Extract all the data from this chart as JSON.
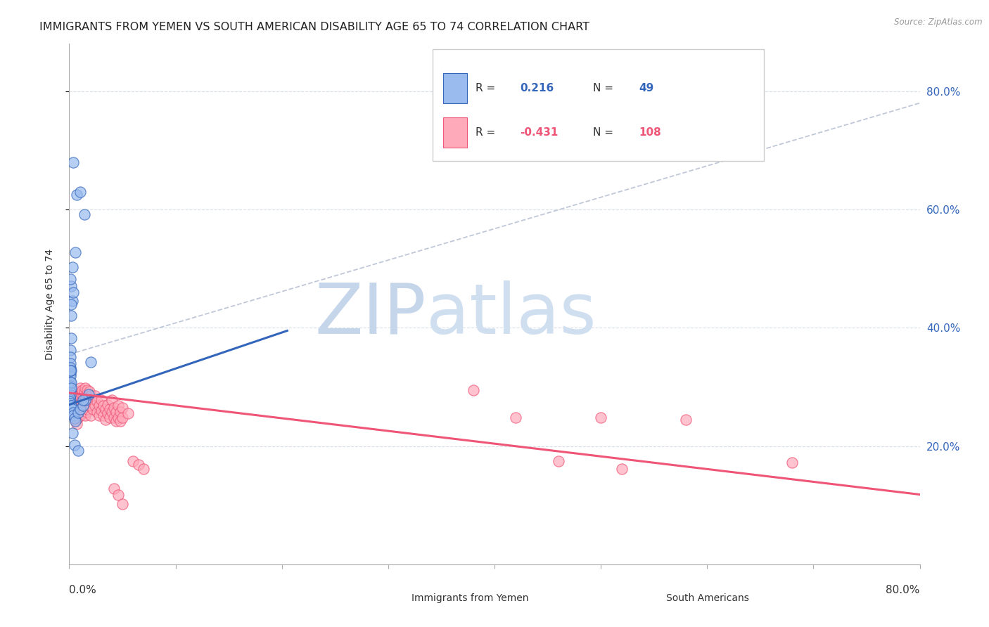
{
  "title": "IMMIGRANTS FROM YEMEN VS SOUTH AMERICAN DISABILITY AGE 65 TO 74 CORRELATION CHART",
  "source": "Source: ZipAtlas.com",
  "ylabel": "Disability Age 65 to 74",
  "ytick_values": [
    0.2,
    0.4,
    0.6,
    0.8
  ],
  "xlim": [
    0.0,
    0.8
  ],
  "ylim": [
    0.0,
    0.88
  ],
  "watermark_zip": "ZIP",
  "watermark_atlas": "atlas",
  "legend_label1": "Immigrants from Yemen",
  "legend_label2": "South Americans",
  "blue_scatter": [
    [
      0.004,
      0.68
    ],
    [
      0.007,
      0.625
    ],
    [
      0.01,
      0.63
    ],
    [
      0.014,
      0.592
    ],
    [
      0.006,
      0.528
    ],
    [
      0.002,
      0.47
    ],
    [
      0.003,
      0.445
    ],
    [
      0.004,
      0.46
    ],
    [
      0.002,
      0.44
    ],
    [
      0.002,
      0.42
    ],
    [
      0.001,
      0.362
    ],
    [
      0.001,
      0.35
    ],
    [
      0.001,
      0.34
    ],
    [
      0.001,
      0.332
    ],
    [
      0.001,
      0.322
    ],
    [
      0.001,
      0.318
    ],
    [
      0.002,
      0.328
    ],
    [
      0.001,
      0.308
    ],
    [
      0.001,
      0.302
    ],
    [
      0.0008,
      0.297
    ],
    [
      0.0008,
      0.291
    ],
    [
      0.0008,
      0.286
    ],
    [
      0.0008,
      0.278
    ],
    [
      0.0005,
      0.281
    ],
    [
      0.0005,
      0.276
    ],
    [
      0.0008,
      0.272
    ],
    [
      0.0015,
      0.268
    ],
    [
      0.002,
      0.268
    ],
    [
      0.003,
      0.262
    ],
    [
      0.0035,
      0.257
    ],
    [
      0.004,
      0.252
    ],
    [
      0.005,
      0.247
    ],
    [
      0.006,
      0.242
    ],
    [
      0.008,
      0.257
    ],
    [
      0.01,
      0.262
    ],
    [
      0.013,
      0.268
    ],
    [
      0.015,
      0.278
    ],
    [
      0.02,
      0.342
    ],
    [
      0.018,
      0.287
    ],
    [
      0.013,
      0.278
    ],
    [
      0.003,
      0.222
    ],
    [
      0.005,
      0.202
    ],
    [
      0.008,
      0.192
    ],
    [
      0.002,
      0.308
    ],
    [
      0.002,
      0.298
    ],
    [
      0.001,
      0.482
    ],
    [
      0.003,
      0.502
    ],
    [
      0.002,
      0.382
    ],
    [
      0.001,
      0.328
    ]
  ],
  "pink_scatter": [
    [
      0.001,
      0.295
    ],
    [
      0.001,
      0.278
    ],
    [
      0.002,
      0.285
    ],
    [
      0.002,
      0.272
    ],
    [
      0.003,
      0.29
    ],
    [
      0.003,
      0.275
    ],
    [
      0.003,
      0.262
    ],
    [
      0.004,
      0.282
    ],
    [
      0.004,
      0.268
    ],
    [
      0.004,
      0.255
    ],
    [
      0.005,
      0.292
    ],
    [
      0.005,
      0.278
    ],
    [
      0.005,
      0.265
    ],
    [
      0.005,
      0.252
    ],
    [
      0.006,
      0.285
    ],
    [
      0.006,
      0.272
    ],
    [
      0.006,
      0.258
    ],
    [
      0.006,
      0.245
    ],
    [
      0.007,
      0.278
    ],
    [
      0.007,
      0.265
    ],
    [
      0.007,
      0.252
    ],
    [
      0.007,
      0.238
    ],
    [
      0.008,
      0.292
    ],
    [
      0.008,
      0.275
    ],
    [
      0.008,
      0.262
    ],
    [
      0.008,
      0.248
    ],
    [
      0.009,
      0.285
    ],
    [
      0.009,
      0.27
    ],
    [
      0.009,
      0.255
    ],
    [
      0.01,
      0.298
    ],
    [
      0.01,
      0.282
    ],
    [
      0.01,
      0.268
    ],
    [
      0.01,
      0.252
    ],
    [
      0.011,
      0.288
    ],
    [
      0.011,
      0.272
    ],
    [
      0.011,
      0.258
    ],
    [
      0.012,
      0.295
    ],
    [
      0.012,
      0.278
    ],
    [
      0.012,
      0.262
    ],
    [
      0.013,
      0.285
    ],
    [
      0.013,
      0.27
    ],
    [
      0.013,
      0.255
    ],
    [
      0.014,
      0.292
    ],
    [
      0.014,
      0.278
    ],
    [
      0.014,
      0.262
    ],
    [
      0.015,
      0.298
    ],
    [
      0.015,
      0.282
    ],
    [
      0.015,
      0.265
    ],
    [
      0.015,
      0.252
    ],
    [
      0.016,
      0.288
    ],
    [
      0.016,
      0.272
    ],
    [
      0.016,
      0.258
    ],
    [
      0.017,
      0.295
    ],
    [
      0.017,
      0.278
    ],
    [
      0.017,
      0.262
    ],
    [
      0.018,
      0.285
    ],
    [
      0.018,
      0.268
    ],
    [
      0.019,
      0.292
    ],
    [
      0.019,
      0.275
    ],
    [
      0.02,
      0.285
    ],
    [
      0.02,
      0.268
    ],
    [
      0.02,
      0.252
    ],
    [
      0.022,
      0.278
    ],
    [
      0.022,
      0.262
    ],
    [
      0.024,
      0.285
    ],
    [
      0.024,
      0.268
    ],
    [
      0.026,
      0.275
    ],
    [
      0.026,
      0.258
    ],
    [
      0.028,
      0.268
    ],
    [
      0.028,
      0.252
    ],
    [
      0.03,
      0.278
    ],
    [
      0.03,
      0.26
    ],
    [
      0.032,
      0.268
    ],
    [
      0.032,
      0.252
    ],
    [
      0.034,
      0.262
    ],
    [
      0.034,
      0.245
    ],
    [
      0.036,
      0.27
    ],
    [
      0.036,
      0.255
    ],
    [
      0.038,
      0.262
    ],
    [
      0.038,
      0.248
    ],
    [
      0.04,
      0.278
    ],
    [
      0.04,
      0.258
    ],
    [
      0.042,
      0.265
    ],
    [
      0.042,
      0.248
    ],
    [
      0.044,
      0.258
    ],
    [
      0.044,
      0.242
    ],
    [
      0.046,
      0.268
    ],
    [
      0.046,
      0.248
    ],
    [
      0.048,
      0.258
    ],
    [
      0.048,
      0.242
    ],
    [
      0.05,
      0.265
    ],
    [
      0.05,
      0.248
    ],
    [
      0.055,
      0.255
    ],
    [
      0.06,
      0.175
    ],
    [
      0.065,
      0.168
    ],
    [
      0.07,
      0.162
    ],
    [
      0.042,
      0.128
    ],
    [
      0.046,
      0.118
    ],
    [
      0.05,
      0.102
    ],
    [
      0.38,
      0.295
    ],
    [
      0.42,
      0.248
    ],
    [
      0.46,
      0.175
    ],
    [
      0.5,
      0.248
    ],
    [
      0.52,
      0.162
    ],
    [
      0.58,
      0.245
    ],
    [
      0.68,
      0.172
    ]
  ],
  "blue_line_x": [
    0.0,
    0.205
  ],
  "blue_line_y": [
    0.27,
    0.395
  ],
  "pink_line_x": [
    0.0,
    0.8
  ],
  "pink_line_y": [
    0.29,
    0.118
  ],
  "dashed_line_x": [
    0.0,
    0.8
  ],
  "dashed_line_y": [
    0.355,
    0.78
  ],
  "blue_color": "#99bbee",
  "pink_color": "#ffaabb",
  "blue_line_color": "#3366bb",
  "pink_line_color": "#ee5577",
  "dashed_line_color": "#c0c8d8",
  "watermark_color_zip": "#c5d5ea",
  "watermark_color_atlas": "#d0dff0",
  "background_color": "#ffffff",
  "title_fontsize": 11.5,
  "axis_fontsize": 10,
  "tick_fontsize": 10
}
